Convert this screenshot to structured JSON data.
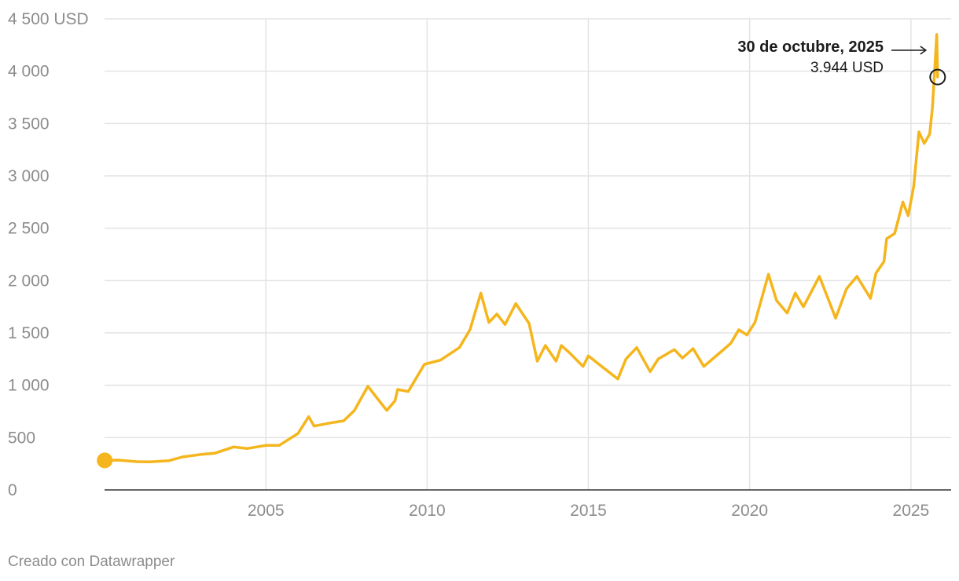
{
  "chart_data": {
    "type": "line",
    "title": "",
    "xlabel": "",
    "ylabel": "",
    "x_range": [
      "2000-01-01",
      "2026-04-01"
    ],
    "ylim": [
      0,
      4500
    ],
    "grid": true,
    "y_ticks": [
      {
        "value": 0,
        "label": "0"
      },
      {
        "value": 500,
        "label": "500"
      },
      {
        "value": 1000,
        "label": "1 000"
      },
      {
        "value": 1500,
        "label": "1 500"
      },
      {
        "value": 2000,
        "label": "2 000"
      },
      {
        "value": 2500,
        "label": "2 500"
      },
      {
        "value": 3000,
        "label": "3 000"
      },
      {
        "value": 3500,
        "label": "3 500"
      },
      {
        "value": 4000,
        "label": "4 000"
      },
      {
        "value": 4500,
        "label": "4 500 USD"
      }
    ],
    "x_ticks": [
      {
        "value": "2005-01-01",
        "label": "2005"
      },
      {
        "value": "2010-01-01",
        "label": "2010"
      },
      {
        "value": "2015-01-01",
        "label": "2015"
      },
      {
        "value": "2020-01-01",
        "label": "2020"
      },
      {
        "value": "2025-01-01",
        "label": "2025"
      }
    ],
    "series": [
      {
        "color": "#f5b51c",
        "points": [
          [
            "2000-01-03",
            282
          ],
          [
            "2000-06-01",
            285
          ],
          [
            "2001-01-01",
            270
          ],
          [
            "2001-06-01",
            268
          ],
          [
            "2002-01-01",
            280
          ],
          [
            "2002-06-01",
            315
          ],
          [
            "2003-01-01",
            340
          ],
          [
            "2003-06-01",
            350
          ],
          [
            "2004-01-01",
            410
          ],
          [
            "2004-06-01",
            395
          ],
          [
            "2005-01-01",
            425
          ],
          [
            "2005-06-01",
            425
          ],
          [
            "2006-01-01",
            540
          ],
          [
            "2006-05-01",
            700
          ],
          [
            "2006-07-01",
            610
          ],
          [
            "2007-01-01",
            640
          ],
          [
            "2007-06-01",
            660
          ],
          [
            "2007-10-01",
            760
          ],
          [
            "2008-03-01",
            990
          ],
          [
            "2008-06-01",
            890
          ],
          [
            "2008-10-01",
            760
          ],
          [
            "2009-01-01",
            850
          ],
          [
            "2009-02-01",
            960
          ],
          [
            "2009-06-01",
            940
          ],
          [
            "2009-12-01",
            1200
          ],
          [
            "2010-06-01",
            1240
          ],
          [
            "2011-01-01",
            1360
          ],
          [
            "2011-05-01",
            1530
          ],
          [
            "2011-09-01",
            1880
          ],
          [
            "2011-12-01",
            1600
          ],
          [
            "2012-03-01",
            1680
          ],
          [
            "2012-06-01",
            1580
          ],
          [
            "2012-10-01",
            1780
          ],
          [
            "2013-03-01",
            1590
          ],
          [
            "2013-06-01",
            1230
          ],
          [
            "2013-09-01",
            1380
          ],
          [
            "2014-01-01",
            1230
          ],
          [
            "2014-03-01",
            1380
          ],
          [
            "2014-06-01",
            1310
          ],
          [
            "2014-11-01",
            1180
          ],
          [
            "2015-01-01",
            1280
          ],
          [
            "2015-06-01",
            1180
          ],
          [
            "2015-12-01",
            1060
          ],
          [
            "2016-03-01",
            1250
          ],
          [
            "2016-07-01",
            1360
          ],
          [
            "2016-12-01",
            1130
          ],
          [
            "2017-03-01",
            1250
          ],
          [
            "2017-09-01",
            1340
          ],
          [
            "2017-12-01",
            1260
          ],
          [
            "2018-04-01",
            1350
          ],
          [
            "2018-08-01",
            1180
          ],
          [
            "2019-01-01",
            1290
          ],
          [
            "2019-06-01",
            1400
          ],
          [
            "2019-09-01",
            1530
          ],
          [
            "2019-12-01",
            1480
          ],
          [
            "2020-03-01",
            1600
          ],
          [
            "2020-08-01",
            2060
          ],
          [
            "2020-11-01",
            1810
          ],
          [
            "2021-03-01",
            1690
          ],
          [
            "2021-06-01",
            1880
          ],
          [
            "2021-09-01",
            1750
          ],
          [
            "2022-03-01",
            2040
          ],
          [
            "2022-09-01",
            1640
          ],
          [
            "2023-01-01",
            1920
          ],
          [
            "2023-05-01",
            2040
          ],
          [
            "2023-10-01",
            1830
          ],
          [
            "2023-12-01",
            2070
          ],
          [
            "2024-03-01",
            2180
          ],
          [
            "2024-04-01",
            2400
          ],
          [
            "2024-07-01",
            2450
          ],
          [
            "2024-10-01",
            2750
          ],
          [
            "2024-12-01",
            2620
          ],
          [
            "2025-02-01",
            2900
          ],
          [
            "2025-04-01",
            3420
          ],
          [
            "2025-06-01",
            3310
          ],
          [
            "2025-08-01",
            3400
          ],
          [
            "2025-09-01",
            3650
          ],
          [
            "2025-10-20",
            4350
          ],
          [
            "2025-10-30",
            3944
          ]
        ]
      }
    ],
    "annotation": {
      "date": "2025-10-30",
      "value": 3944,
      "title": "30 de octubre, 2025",
      "text": "3.944 USD"
    }
  },
  "footer": {
    "credit": "Creado con Datawrapper"
  }
}
